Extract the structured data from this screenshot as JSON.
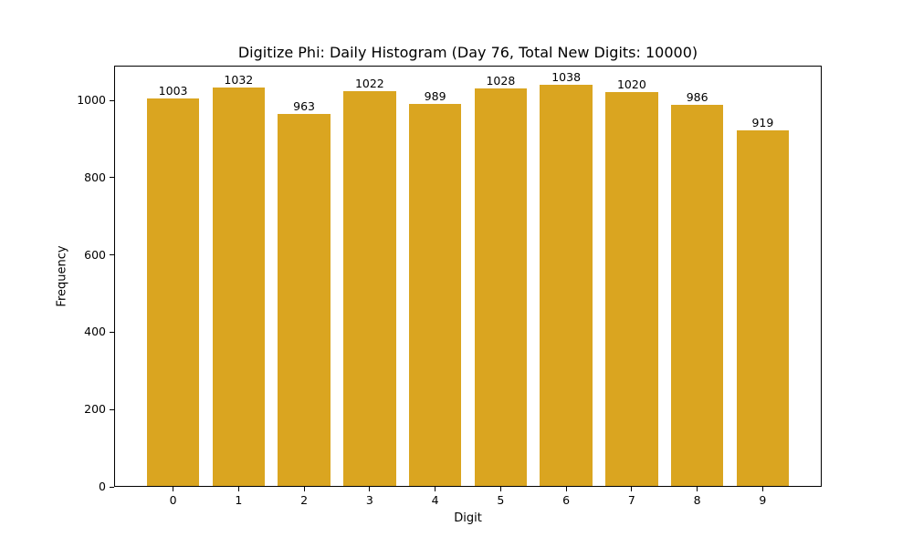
{
  "chart_data": {
    "type": "bar",
    "title": "Digitize Phi: Daily Histogram (Day 76, Total New Digits: 10000)",
    "xlabel": "Digit",
    "ylabel": "Frequency",
    "categories": [
      "0",
      "1",
      "2",
      "3",
      "4",
      "5",
      "6",
      "7",
      "8",
      "9"
    ],
    "values": [
      1003,
      1032,
      963,
      1022,
      989,
      1028,
      1038,
      1020,
      986,
      919
    ],
    "data_labels": [
      "1003",
      "1032",
      "963",
      "1022",
      "989",
      "1028",
      "1038",
      "1020",
      "986",
      "919"
    ],
    "yticks": [
      "0",
      "200",
      "400",
      "600",
      "800",
      "1000"
    ],
    "ylim": [
      0,
      1090
    ],
    "xlim": [
      -0.9,
      9.9
    ],
    "grid": false,
    "legend": null,
    "bar_color": "#DAA520"
  }
}
